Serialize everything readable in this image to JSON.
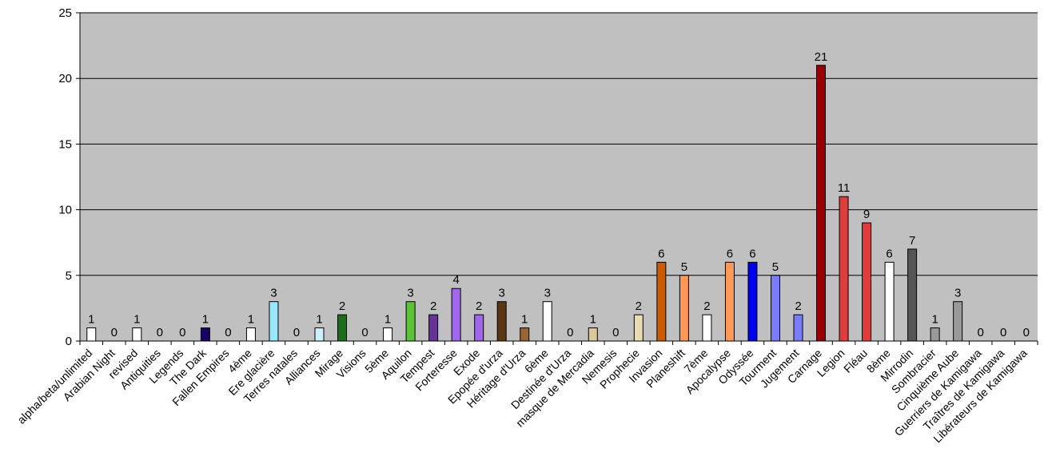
{
  "chart_data": {
    "type": "bar",
    "title": "",
    "xlabel": "",
    "ylabel": "",
    "ylim": [
      0,
      25
    ],
    "yticks": [
      0,
      5,
      10,
      15,
      20,
      25
    ],
    "grid": true,
    "plot_background": "#c0c0c0",
    "categories": [
      "alpha/beta/unlimited",
      "Arabian Night",
      "revised",
      "Antiquities",
      "Legends",
      "The Dark",
      "Fallen Empires",
      "4ème",
      "Ere glacière",
      "Terres natales",
      "Alliances",
      "Mirage",
      "Visions",
      "5ème",
      "Aquilon",
      "Tempest",
      "Forteresse",
      "Exode",
      "Epopée d'urza",
      "Héritage d'Urza",
      "6ème",
      "Destinée d'Urza",
      "masque de Mercadia",
      "Nemesis",
      "Prophecie",
      "Invasion",
      "Planeshift",
      "7ème",
      "Apocalypse",
      "Odyssée",
      "Tourment",
      "Jugement",
      "Carnage",
      "Legion",
      "Fléau",
      "8ème",
      "Mirrodin",
      "Sombracier",
      "Cinquième Aube",
      "Guerriers de Kamigawa",
      "Traîtres de Kamigawa",
      "Libérateurs de Kamigawa"
    ],
    "values": [
      1,
      0,
      1,
      0,
      0,
      1,
      0,
      1,
      3,
      0,
      1,
      2,
      0,
      1,
      3,
      2,
      4,
      2,
      3,
      1,
      3,
      0,
      1,
      0,
      2,
      6,
      5,
      2,
      6,
      6,
      5,
      2,
      21,
      11,
      9,
      6,
      7,
      1,
      3,
      0,
      0,
      0
    ],
    "colors": [
      "#ffffff",
      "#ffffff",
      "#ffffff",
      "#ffffff",
      "#ffffff",
      "#1a0060",
      "#ffffff",
      "#ffffff",
      "#99e6ff",
      "#ffffff",
      "#ccf0ff",
      "#1a6e1a",
      "#ffffff",
      "#ffffff",
      "#5cc23a",
      "#663399",
      "#a066ee",
      "#a066ee",
      "#5c3511",
      "#996633",
      "#ffffff",
      "#ffffff",
      "#d9c89a",
      "#ffffff",
      "#e6dbb3",
      "#cc5a00",
      "#ff9955",
      "#ffffff",
      "#ff9955",
      "#0000ee",
      "#7b7bff",
      "#7b7bff",
      "#990000",
      "#e03c3c",
      "#e03c3c",
      "#ffffff",
      "#555555",
      "#999999",
      "#999999",
      "#ffffff",
      "#ffffff",
      "#ffffff"
    ]
  }
}
